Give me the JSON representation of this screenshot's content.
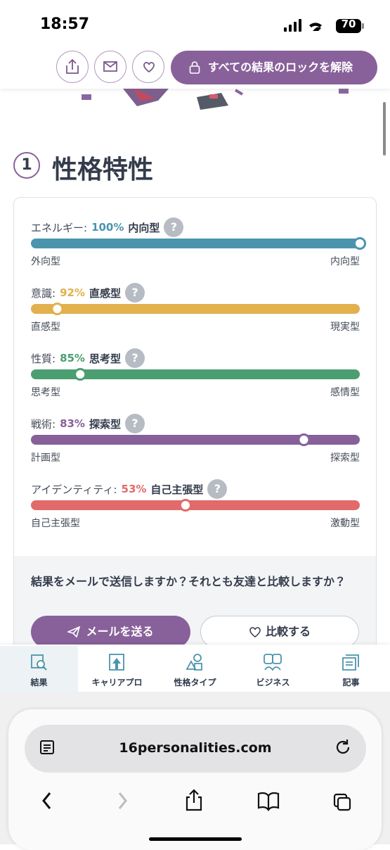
{
  "status_bar": {
    "time": "18:57",
    "battery": "70"
  },
  "header": {
    "unlock_button": "すべての結果のロックを解除"
  },
  "section": {
    "number": "1",
    "title": "性格特性"
  },
  "traits": [
    {
      "name": "エネルギー:",
      "value": 100,
      "value_label": "100%",
      "type": "内向型",
      "left": "外向型",
      "right": "内向型",
      "color": "#4b94ad"
    },
    {
      "name": "意識:",
      "value": 92,
      "value_label": "92%",
      "type": "直感型",
      "left": "直感型",
      "right": "現実型",
      "color": "#e2b04c"
    },
    {
      "name": "性質:",
      "value": 85,
      "value_label": "85%",
      "type": "思考型",
      "left": "思考型",
      "right": "感情型",
      "color": "#4b9e70"
    },
    {
      "name": "戦術:",
      "value": 83,
      "value_label": "83%",
      "type": "探索型",
      "left": "計画型",
      "right": "探索型",
      "color": "#87609a"
    },
    {
      "name": "アイデンティティ:",
      "value": 53,
      "value_label": "53%",
      "type": "自己主張型",
      "left": "自己主張型",
      "right": "激動型",
      "color": "#e26a6a"
    }
  ],
  "share": {
    "question": "結果をメールで送信しますか？それとも友達と比較しますか？",
    "email_button": "メールを送る",
    "compare_button": "比較する"
  },
  "nav": {
    "tabs": [
      "結果",
      "キャリアプロ",
      "性格タイプ",
      "ビジネス",
      "記事"
    ],
    "active_tab": 0
  },
  "browser": {
    "url": "16personalities.com"
  }
}
